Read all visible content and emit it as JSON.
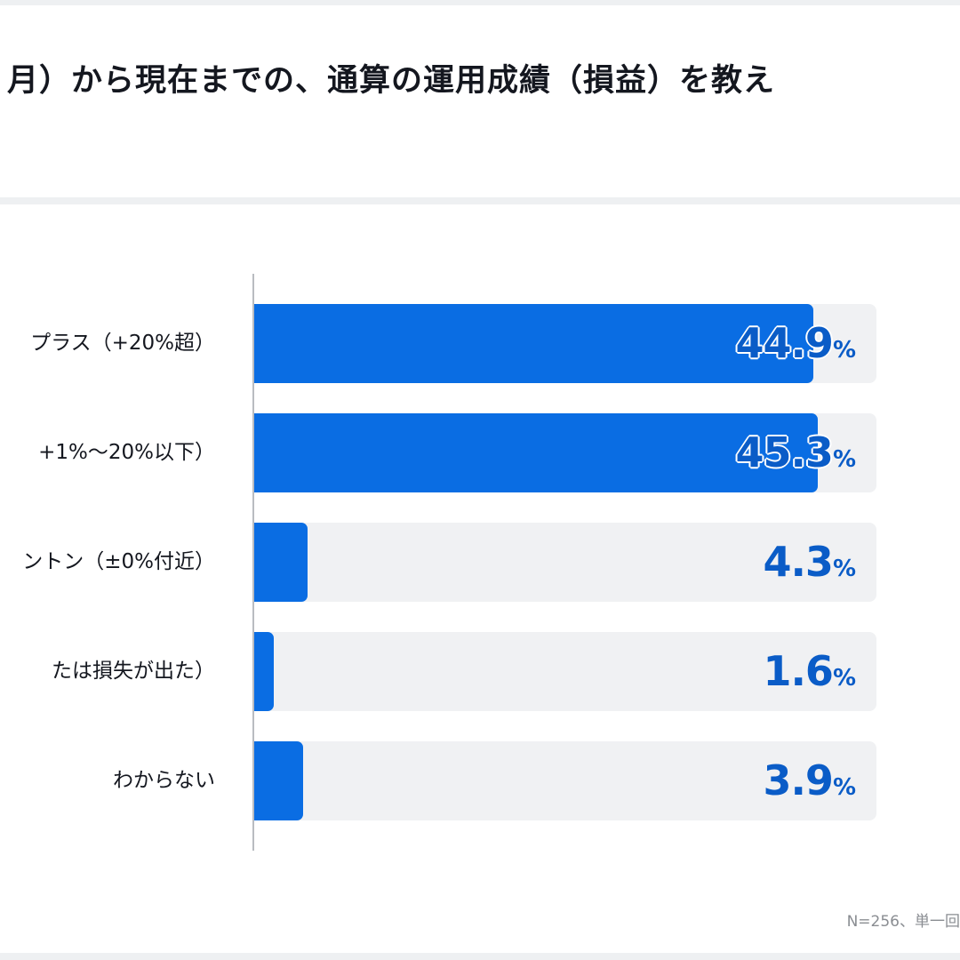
{
  "title": "月）から現在までの、通算の運用成績（損益）を教え",
  "note": "N=256、単一回",
  "colors": {
    "bar": "#0a6de3",
    "track": "#f0f1f3",
    "value_text": "#0a5cc7"
  },
  "chart_data": {
    "type": "bar",
    "orientation": "horizontal",
    "categories": [
      "プラス（+20%超）",
      "+1%〜20%以下）",
      "ントン（±0%付近）",
      "たは損失が出た）",
      "わからない"
    ],
    "values": [
      44.9,
      45.3,
      4.3,
      1.6,
      3.9
    ],
    "value_labels": [
      "44.9",
      "45.3",
      "4.3",
      "1.6",
      "3.9"
    ],
    "unit": "%",
    "xlim": [
      0,
      50
    ],
    "grid": false
  }
}
